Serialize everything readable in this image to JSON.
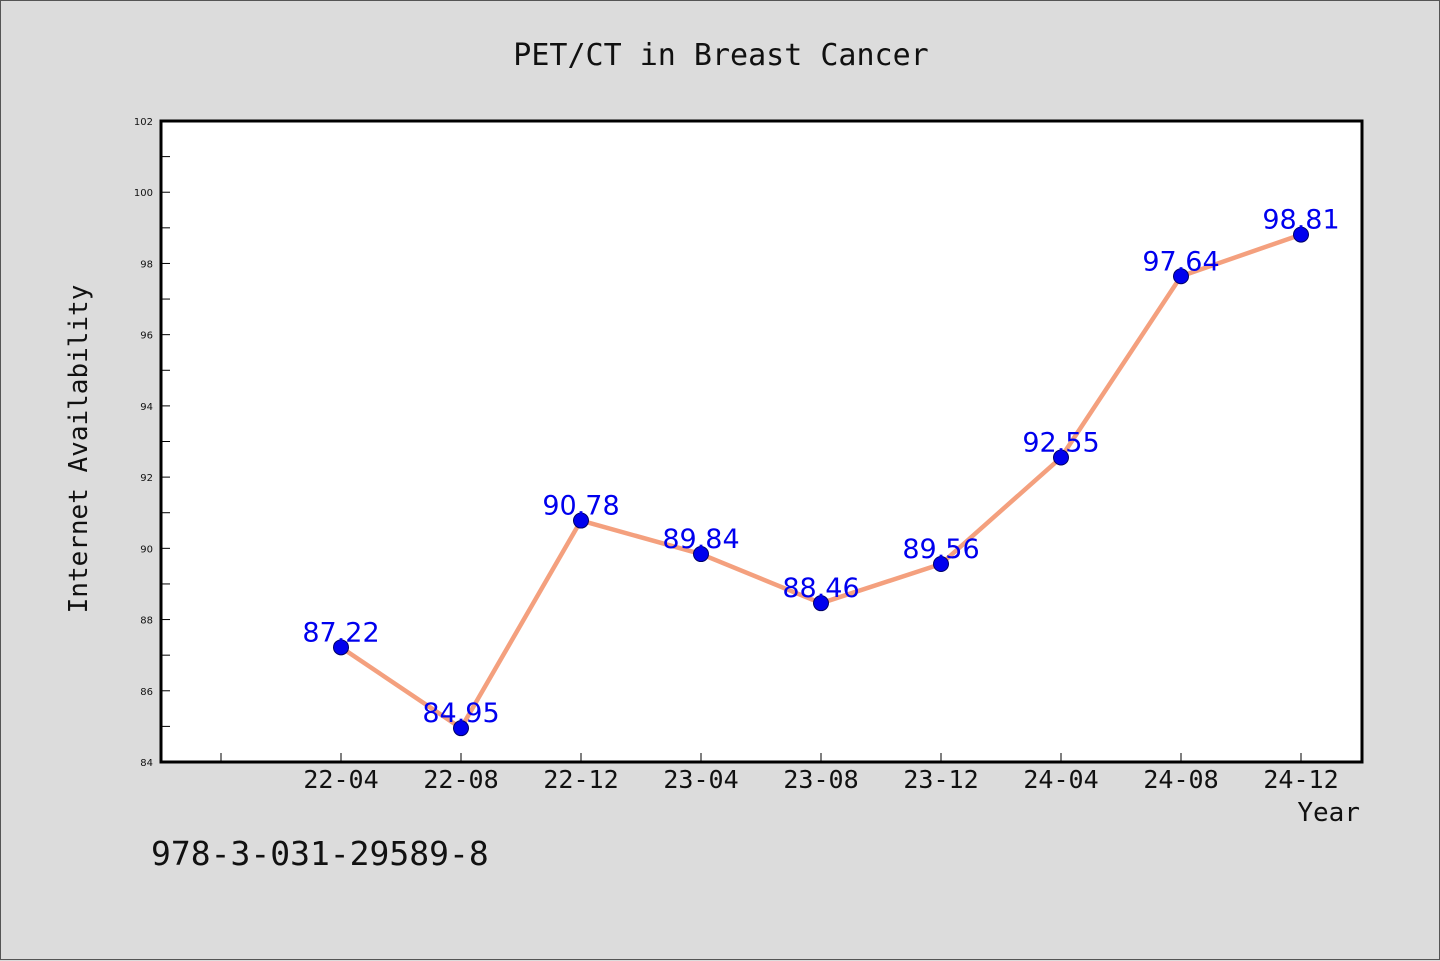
{
  "chart_data": {
    "type": "line",
    "title": "PET/CT in Breast Cancer",
    "xlabel": "Year",
    "ylabel": "Internet Availability",
    "categories": [
      "22-04",
      "22-08",
      "22-12",
      "23-04",
      "23-08",
      "23-12",
      "24-04",
      "24-08",
      "24-12"
    ],
    "series": [
      {
        "values": [
          87.22,
          84.95,
          90.78,
          89.84,
          88.46,
          89.56,
          92.55,
          97.64,
          98.81
        ],
        "labels": [
          "87.22",
          "84.95",
          "90.78",
          "89.84",
          "88.46",
          "89.56",
          "92.55",
          "97.64",
          "98.81"
        ]
      }
    ],
    "ylim": [
      84,
      102
    ],
    "yticks": [
      "84",
      "86",
      "88",
      "90",
      "92",
      "94",
      "96",
      "98",
      "100",
      "102"
    ],
    "grid": false,
    "line_color": "#f4a07e",
    "marker_color": "#0000ee",
    "label_color": "#0000ee"
  },
  "annotation": "978-3-031-29589-8"
}
